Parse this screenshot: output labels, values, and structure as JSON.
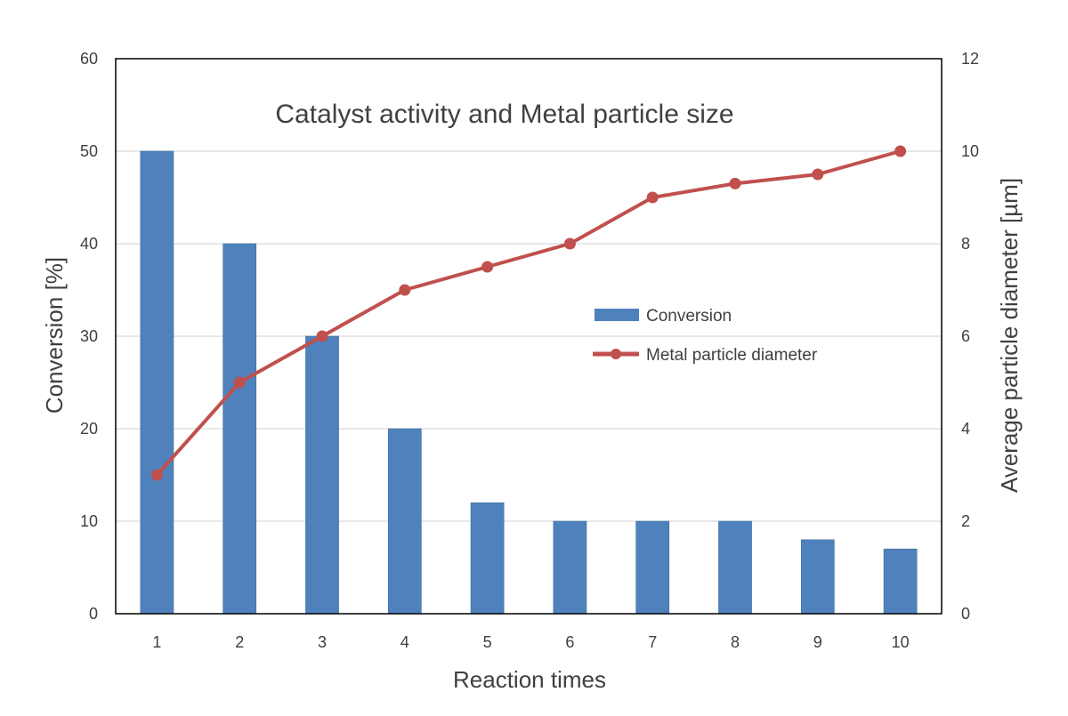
{
  "chart_data": {
    "type": "bar",
    "title": "Catalyst activity and Metal particle size",
    "xlabel": "Reaction times",
    "ylabel": "Conversion [%]",
    "y2label": "Average particle diameter [µm]",
    "categories": [
      "1",
      "2",
      "3",
      "4",
      "5",
      "6",
      "7",
      "8",
      "9",
      "10"
    ],
    "ylim": [
      0,
      60
    ],
    "yticks": [
      "0",
      "10",
      "20",
      "30",
      "40",
      "50",
      "60"
    ],
    "y2lim": [
      0,
      12
    ],
    "y2ticks": [
      "0",
      "2",
      "4",
      "6",
      "8",
      "10",
      "12"
    ],
    "grid": true,
    "legend_position": "center-right",
    "series": [
      {
        "name": "Conversion",
        "type": "bar",
        "axis": "left",
        "color": "#4F81BD",
        "values": [
          50,
          40,
          30,
          20,
          12,
          10,
          10,
          10,
          8,
          7
        ]
      },
      {
        "name": "Metal particle diameter",
        "type": "line",
        "axis": "right",
        "color": "#C0504D",
        "values": [
          3,
          5,
          6,
          7,
          7.5,
          8,
          9,
          9.3,
          9.5,
          10
        ]
      }
    ]
  }
}
